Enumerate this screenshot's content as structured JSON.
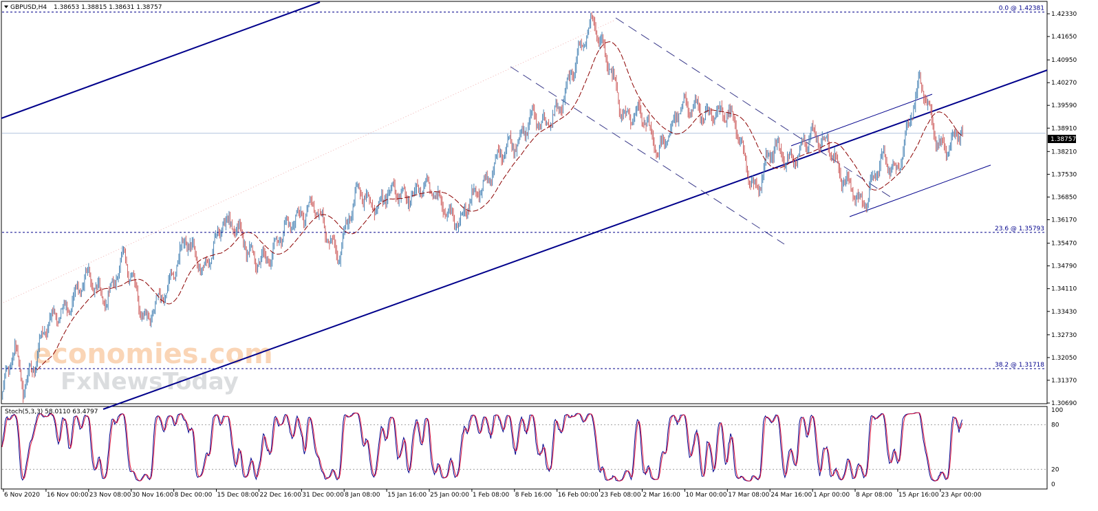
{
  "header": {
    "symbol": "GBPUSD,H4",
    "ohlc": "1.38653 1.38815 1.38631 1.38757",
    "stoch_label": "Stoch(5,3,3) 58.0110 63.4797"
  },
  "watermark": {
    "line1": "economies.com",
    "line2": "FxNewsToday"
  },
  "colors": {
    "bull": "#4682b4",
    "bear": "#cd5c5c",
    "trend": "#00008b",
    "fib": "#00008b",
    "ma": "#8b0000",
    "stoch_main": "#00008b",
    "stoch_signal": "#dc143c",
    "price_line": "#b0c4de"
  },
  "chart_data": {
    "type": "candlestick",
    "ylim": [
      1.3069,
      1.4268
    ],
    "y_ticks": [
      "1.42330",
      "1.41650",
      "1.40950",
      "1.40270",
      "1.39590",
      "1.38910",
      "1.38210",
      "1.37530",
      "1.36850",
      "1.36170",
      "1.35470",
      "1.34790",
      "1.34110",
      "1.33430",
      "1.32730",
      "1.32050",
      "1.31370",
      "1.30690"
    ],
    "x_ticks": [
      "6 Nov 2020",
      "16 Nov 00:00",
      "23 Nov 08:00",
      "30 Nov 16:00",
      "8 Dec 00:00",
      "15 Dec 08:00",
      "22 Dec 16:00",
      "31 Dec 00:00",
      "8 Jan 08:00",
      "15 Jan 16:00",
      "25 Jan 00:00",
      "1 Feb 08:00",
      "8 Feb 16:00",
      "16 Feb 00:00",
      "23 Feb 08:00",
      "2 Mar 16:00",
      "10 Mar 00:00",
      "17 Mar 08:00",
      "24 Mar 16:00",
      "1 Apr 00:00",
      "8 Apr 08:00",
      "15 Apr 16:00",
      "23 Apr 00:00"
    ],
    "current_price": "1.38757",
    "fib_levels": [
      {
        "label": "0.0 @ 1.42381",
        "value": 1.42381
      },
      {
        "label": "23.6 @ 1.35793",
        "value": 1.35793
      },
      {
        "label": "38.2 @ 1.31718",
        "value": 1.31718
      }
    ],
    "series_anchors": [
      [
        0,
        1.31
      ],
      [
        12,
        1.322
      ],
      [
        20,
        1.312
      ],
      [
        40,
        1.327
      ],
      [
        62,
        1.337
      ],
      [
        82,
        1.343
      ],
      [
        100,
        1.339
      ],
      [
        118,
        1.349
      ],
      [
        140,
        1.333
      ],
      [
        160,
        1.339
      ],
      [
        178,
        1.358
      ],
      [
        196,
        1.344
      ],
      [
        215,
        1.363
      ],
      [
        240,
        1.352
      ],
      [
        262,
        1.35
      ],
      [
        285,
        1.364
      ],
      [
        305,
        1.364
      ],
      [
        328,
        1.352
      ],
      [
        348,
        1.37
      ],
      [
        368,
        1.367
      ],
      [
        390,
        1.37
      ],
      [
        410,
        1.371
      ],
      [
        430,
        1.367
      ],
      [
        447,
        1.36
      ],
      [
        462,
        1.37
      ],
      [
        480,
        1.378
      ],
      [
        500,
        1.385
      ],
      [
        515,
        1.393
      ],
      [
        530,
        1.388
      ],
      [
        548,
        1.4
      ],
      [
        565,
        1.412
      ],
      [
        577,
        1.423
      ],
      [
        590,
        1.41
      ],
      [
        605,
        1.391
      ],
      [
        622,
        1.396
      ],
      [
        640,
        1.38
      ],
      [
        660,
        1.396
      ],
      [
        680,
        1.393
      ],
      [
        700,
        1.395
      ],
      [
        716,
        1.389
      ],
      [
        735,
        1.371
      ],
      [
        755,
        1.383
      ],
      [
        772,
        1.38
      ],
      [
        790,
        1.386
      ],
      [
        805,
        1.387
      ],
      [
        820,
        1.372
      ],
      [
        840,
        1.368
      ],
      [
        858,
        1.378
      ],
      [
        872,
        1.377
      ],
      [
        885,
        1.392
      ],
      [
        895,
        1.401
      ],
      [
        910,
        1.389
      ],
      [
        920,
        1.383
      ],
      [
        930,
        1.385
      ],
      [
        937,
        1.3876
      ]
    ],
    "stochastic": {
      "params": "5,3,3",
      "main": 58.011,
      "signal": 63.4797,
      "levels": [
        20,
        80
      ],
      "ylim": [
        0,
        100
      ],
      "y_ticks": [
        "100",
        "80",
        "20",
        "0"
      ]
    }
  }
}
